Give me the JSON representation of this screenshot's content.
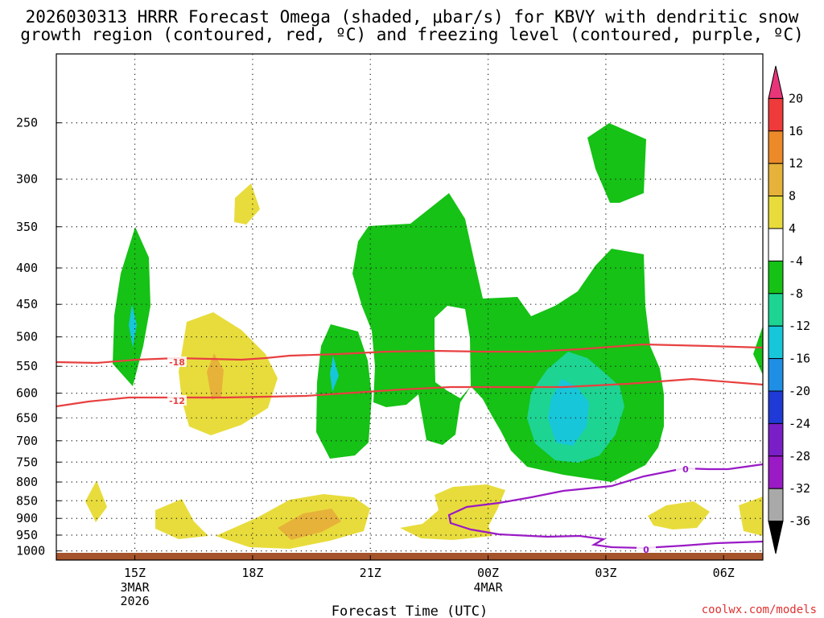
{
  "chart_data": {
    "type": "area",
    "title_lines": [
      "2026030313 HRRR Forecast Omega (shaded, μbar/s) for KBVY with dendritic snow",
      "growth region (contoured, red, ºC) and freezing level (contoured, purple, ºC)"
    ],
    "xlabel": "Forecast Time (UTC)",
    "ylabel": "",
    "y_scale": "log",
    "y_inverted": true,
    "ylim": [
      1030,
      200
    ],
    "xlim_hours": [
      13.0,
      7.0
    ],
    "x_ticks": [
      {
        "hour": 15,
        "label": "15Z",
        "sub": [
          "3MAR",
          "2026"
        ]
      },
      {
        "hour": 18,
        "label": "18Z",
        "sub": []
      },
      {
        "hour": 21,
        "label": "21Z",
        "sub": []
      },
      {
        "hour": 0,
        "label": "00Z",
        "sub": [
          "4MAR"
        ]
      },
      {
        "hour": 3,
        "label": "03Z",
        "sub": []
      },
      {
        "hour": 6,
        "label": "06Z",
        "sub": []
      }
    ],
    "y_ticks": [
      250,
      300,
      350,
      400,
      450,
      500,
      550,
      600,
      650,
      700,
      750,
      800,
      850,
      900,
      950,
      1000
    ],
    "grid": true,
    "colorbar": {
      "labels": [
        "20",
        "16",
        "12",
        "8",
        "4",
        "-4",
        "-8",
        "-12",
        "-16",
        "-20",
        "-24",
        "-28",
        "-32",
        "-36"
      ],
      "colors": [
        "#e8357a",
        "#ee3a3a",
        "#ec8a2a",
        "#e7b23a",
        "#e8dc3c",
        "#ffffff",
        "#15c215",
        "#1dd493",
        "#17c6d9",
        "#1f8fe6",
        "#1f3ad6",
        "#7a1fc7",
        "#9a1ac6",
        "#a9a9a9",
        "#000000"
      ]
    },
    "isotherms": [
      {
        "label": "-18",
        "color": "#e84040"
      },
      {
        "label": "-12",
        "color": "#e84040"
      },
      {
        "label": "0",
        "color": "#9a1ac6"
      },
      {
        "label": "0",
        "color": "#9a1ac6"
      }
    ],
    "credit": "coolwx.com/models"
  }
}
